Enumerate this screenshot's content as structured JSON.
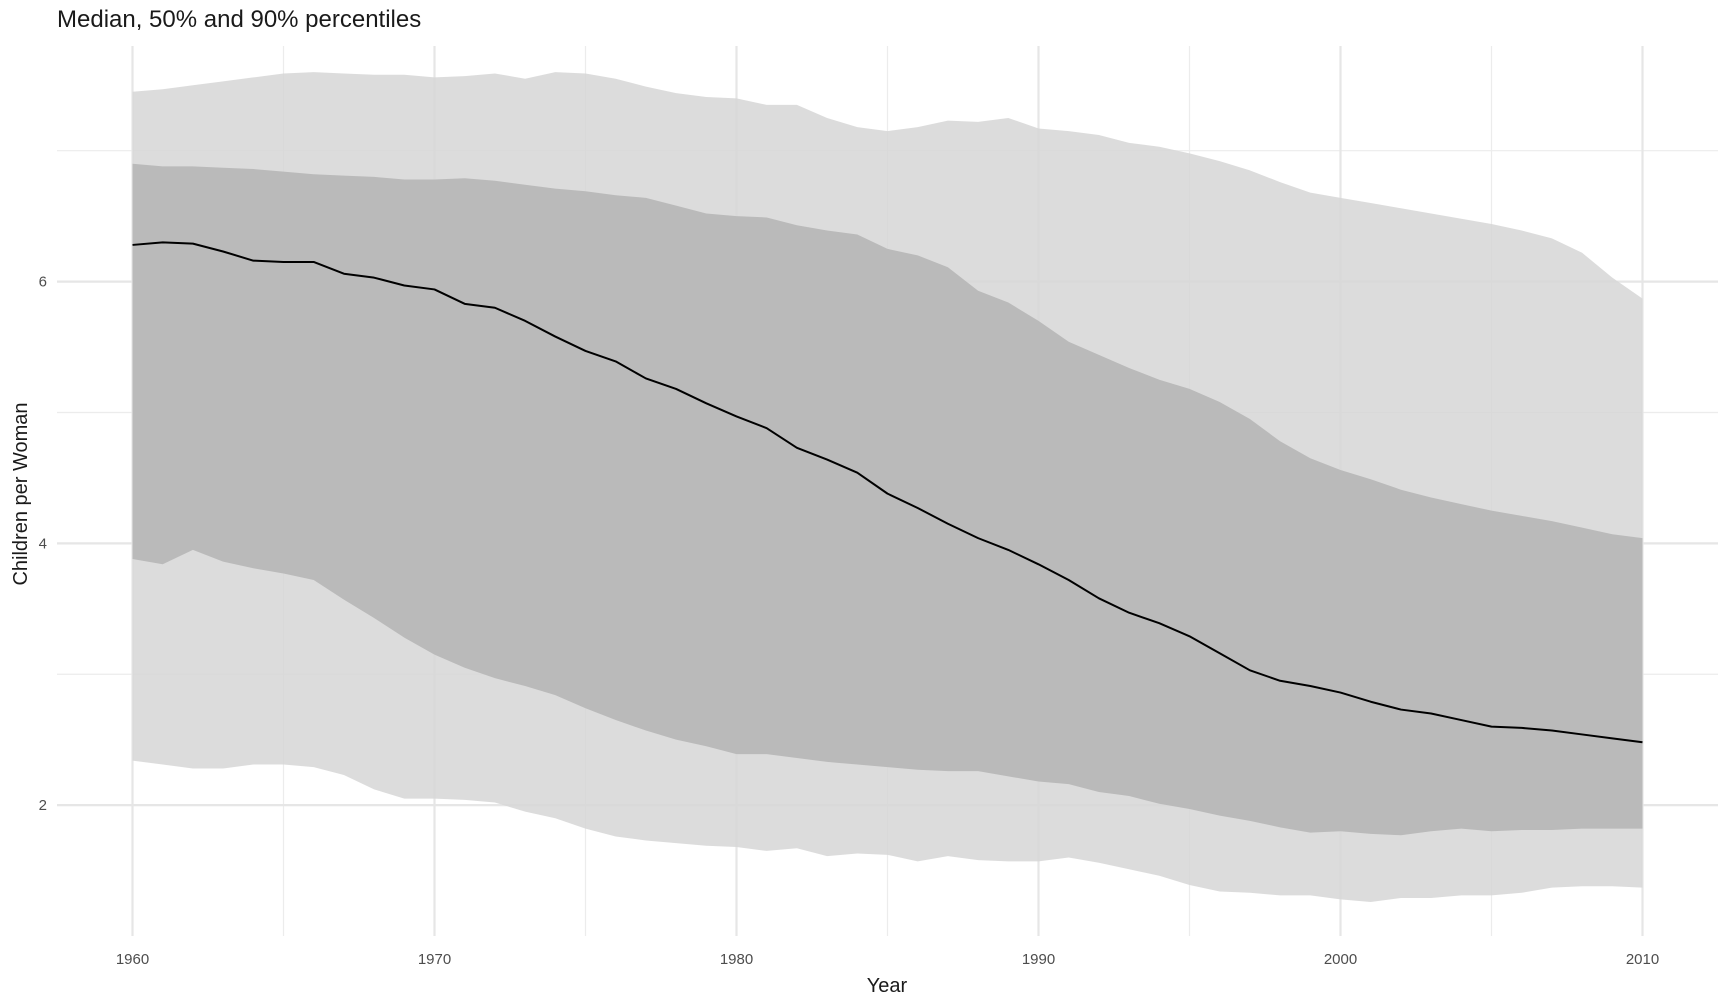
{
  "chart_data": {
    "type": "area",
    "title": "Median, 50% and 90% percentiles",
    "xlabel": "Year",
    "ylabel": "Children per Woman",
    "xlim": [
      1957.5,
      2012.5
    ],
    "ylim": [
      1.0,
      7.8
    ],
    "x_ticks": [
      1960,
      1970,
      1980,
      1990,
      2000,
      2010
    ],
    "x_minor_ticks": [
      1965,
      1975,
      1985,
      1995,
      2005
    ],
    "y_ticks": [
      2,
      4,
      6
    ],
    "y_minor_ticks": [
      3,
      5,
      7
    ],
    "grid": true,
    "legend": "none",
    "x": [
      1960,
      1961,
      1962,
      1963,
      1964,
      1965,
      1966,
      1967,
      1968,
      1969,
      1970,
      1971,
      1972,
      1973,
      1974,
      1975,
      1976,
      1977,
      1978,
      1979,
      1980,
      1981,
      1982,
      1983,
      1984,
      1985,
      1986,
      1987,
      1988,
      1989,
      1990,
      1991,
      1992,
      1993,
      1994,
      1995,
      1996,
      1997,
      1998,
      1999,
      2000,
      2001,
      2002,
      2003,
      2004,
      2005,
      2006,
      2007,
      2008,
      2009,
      2010
    ],
    "series": [
      {
        "name": "90% band",
        "color": "#d6d6d6",
        "lower": [
          2.34,
          2.31,
          2.28,
          2.28,
          2.31,
          2.31,
          2.29,
          2.23,
          2.12,
          2.05,
          2.05,
          2.04,
          2.02,
          1.95,
          1.9,
          1.82,
          1.76,
          1.73,
          1.71,
          1.69,
          1.68,
          1.65,
          1.67,
          1.61,
          1.63,
          1.62,
          1.57,
          1.61,
          1.58,
          1.57,
          1.57,
          1.6,
          1.56,
          1.51,
          1.46,
          1.39,
          1.34,
          1.33,
          1.31,
          1.31,
          1.28,
          1.26,
          1.29,
          1.29,
          1.31,
          1.31,
          1.33,
          1.37,
          1.38,
          1.38,
          1.37
        ],
        "upper": [
          7.45,
          7.47,
          7.5,
          7.53,
          7.56,
          7.59,
          7.6,
          7.59,
          7.58,
          7.58,
          7.56,
          7.57,
          7.59,
          7.55,
          7.6,
          7.59,
          7.55,
          7.49,
          7.44,
          7.41,
          7.4,
          7.35,
          7.35,
          7.25,
          7.18,
          7.15,
          7.18,
          7.23,
          7.22,
          7.25,
          7.17,
          7.15,
          7.12,
          7.06,
          7.03,
          6.98,
          6.92,
          6.85,
          6.76,
          6.68,
          6.64,
          6.6,
          6.56,
          6.52,
          6.48,
          6.44,
          6.39,
          6.33,
          6.22,
          6.03,
          5.87
        ]
      },
      {
        "name": "50% band",
        "color": "#b4b4b4",
        "lower": [
          3.88,
          3.84,
          3.95,
          3.86,
          3.81,
          3.77,
          3.72,
          3.57,
          3.43,
          3.28,
          3.15,
          3.05,
          2.97,
          2.91,
          2.84,
          2.74,
          2.65,
          2.57,
          2.5,
          2.45,
          2.39,
          2.39,
          2.36,
          2.33,
          2.31,
          2.29,
          2.27,
          2.26,
          2.26,
          2.22,
          2.18,
          2.16,
          2.1,
          2.07,
          2.01,
          1.97,
          1.92,
          1.88,
          1.83,
          1.79,
          1.8,
          1.78,
          1.77,
          1.8,
          1.82,
          1.8,
          1.81,
          1.81,
          1.82,
          1.82,
          1.82
        ],
        "upper": [
          6.9,
          6.88,
          6.88,
          6.87,
          6.86,
          6.84,
          6.82,
          6.81,
          6.8,
          6.78,
          6.78,
          6.79,
          6.77,
          6.74,
          6.71,
          6.69,
          6.66,
          6.64,
          6.58,
          6.52,
          6.5,
          6.49,
          6.43,
          6.39,
          6.36,
          6.25,
          6.2,
          6.11,
          5.93,
          5.84,
          5.7,
          5.54,
          5.44,
          5.34,
          5.25,
          5.18,
          5.08,
          4.95,
          4.78,
          4.65,
          4.56,
          4.49,
          4.41,
          4.35,
          4.3,
          4.25,
          4.21,
          4.17,
          4.12,
          4.07,
          4.04
        ]
      },
      {
        "name": "Median",
        "color": "#000000",
        "values": [
          6.28,
          6.3,
          6.29,
          6.23,
          6.16,
          6.15,
          6.15,
          6.06,
          6.03,
          5.97,
          5.94,
          5.83,
          5.8,
          5.7,
          5.58,
          5.47,
          5.39,
          5.26,
          5.18,
          5.07,
          4.97,
          4.88,
          4.73,
          4.64,
          4.54,
          4.38,
          4.27,
          4.15,
          4.04,
          3.95,
          3.84,
          3.72,
          3.58,
          3.47,
          3.39,
          3.29,
          3.16,
          3.03,
          2.95,
          2.91,
          2.86,
          2.79,
          2.73,
          2.7,
          2.65,
          2.6,
          2.59,
          2.57,
          2.54,
          2.51,
          2.48
        ]
      }
    ]
  }
}
